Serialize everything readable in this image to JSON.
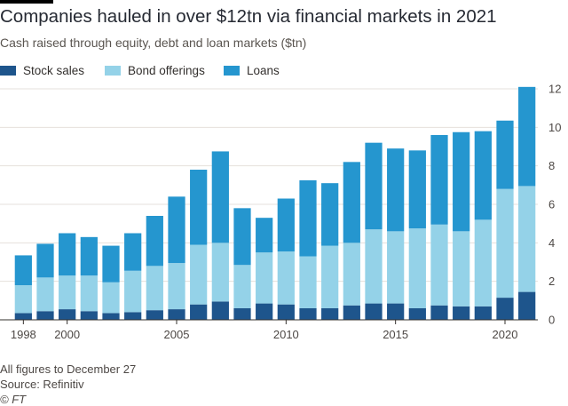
{
  "header": {
    "title": "Companies hauled in over $12tn via financial markets in 2021",
    "subtitle": "Cash raised through equity, debt and loan markets ($tn)"
  },
  "footer": {
    "note": "All figures to December 27",
    "source": "Source: Refinitiv",
    "credit": "© FT"
  },
  "colors": {
    "stock_sales": "#1e558c",
    "bond_offerings": "#94d2e8",
    "loans": "#2596cf",
    "gridline": "#e6e1dc",
    "axis": "#33302e"
  },
  "chart_data": {
    "type": "bar",
    "stacked": true,
    "title": "Companies hauled in over $12tn via financial markets in 2021",
    "subtitle": "Cash raised through equity, debt and loan markets ($tn)",
    "xlabel": "",
    "ylabel": "",
    "ylim": [
      0,
      12
    ],
    "yticks": [
      "0",
      "2",
      "4",
      "6",
      "8",
      "10",
      "12"
    ],
    "xticks": [
      "1998",
      "2000",
      "2005",
      "2010",
      "2015",
      "2020"
    ],
    "grid": true,
    "y_axis_position": "right",
    "legend_position": "top-left",
    "categories": [
      1998,
      1999,
      2000,
      2001,
      2002,
      2003,
      2004,
      2005,
      2006,
      2007,
      2008,
      2009,
      2010,
      2011,
      2012,
      2013,
      2014,
      2015,
      2016,
      2017,
      2018,
      2019,
      2020,
      2021
    ],
    "series": [
      {
        "name": "Stock sales",
        "color": "#1e558c",
        "values": [
          0.35,
          0.45,
          0.55,
          0.45,
          0.35,
          0.4,
          0.5,
          0.55,
          0.8,
          0.95,
          0.6,
          0.85,
          0.8,
          0.6,
          0.6,
          0.75,
          0.85,
          0.85,
          0.6,
          0.75,
          0.7,
          0.7,
          1.15,
          1.45
        ]
      },
      {
        "name": "Bond offerings",
        "color": "#94d2e8",
        "values": [
          1.45,
          1.75,
          1.75,
          1.85,
          1.6,
          2.15,
          2.3,
          2.4,
          3.1,
          3.05,
          2.25,
          2.65,
          2.75,
          2.7,
          3.25,
          3.25,
          3.85,
          3.75,
          4.15,
          4.2,
          3.9,
          4.5,
          5.65,
          5.5
        ]
      },
      {
        "name": "Loans",
        "color": "#2596cf",
        "values": [
          1.55,
          1.75,
          2.2,
          2.0,
          1.9,
          1.95,
          2.6,
          3.45,
          3.9,
          4.75,
          2.95,
          1.8,
          2.75,
          3.95,
          3.25,
          4.2,
          4.5,
          4.3,
          4.05,
          4.65,
          5.15,
          4.6,
          3.55,
          5.15
        ]
      }
    ]
  }
}
